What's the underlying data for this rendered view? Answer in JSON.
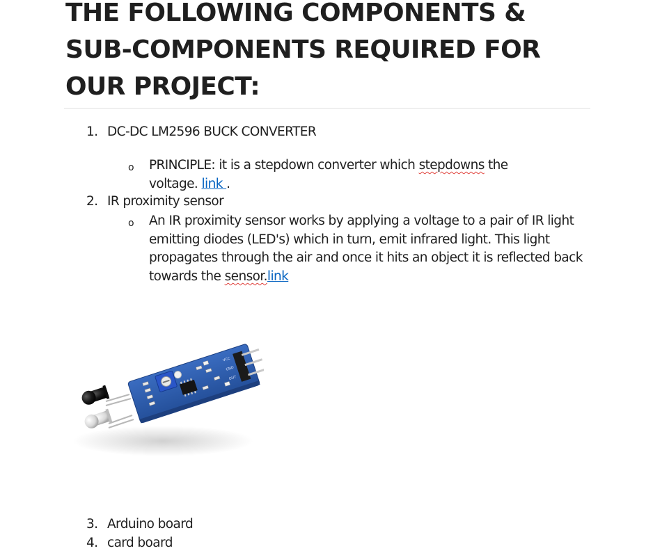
{
  "heading": {
    "line1": "THE FOLLOWING COMPONENTS &",
    "line2": "SUB-COMPONENTS REQUIRED FOR",
    "line3": "OUR PROJECT:"
  },
  "list": [
    {
      "number": "1.",
      "label": "DC-DC LM2596 BUCK CONVERTER",
      "sub": {
        "bullet": "o",
        "line1_before": "PRINCIPLE: it is a stepdown converter which ",
        "line1_misspelled": "stepdowns",
        "line1_after": " the",
        "line2_before": "voltage. ",
        "link_text": "link ",
        "line2_after": "."
      }
    },
    {
      "number": "2.",
      "label": "IR proximity sensor",
      "sub": {
        "bullet": "o",
        "line1": "An IR proximity sensor works by applying a voltage to a pair of IR light",
        "line2": "emitting diodes (LED's) which in turn, emit infrared light. This light",
        "line3": "propagates through the air and once it hits an object it is reflected back",
        "line4_before": "towards the ",
        "line4_misspelled": "sensor.",
        "link_text": "link"
      }
    },
    {
      "number": "3.",
      "label": "Arduino board"
    },
    {
      "number": "4.",
      "label": "card board"
    }
  ],
  "image": {
    "icon": "ir-proximity-sensor-module-photo",
    "colors": {
      "pcb": "#2f5fb0",
      "pcb_dark": "#1f4486",
      "trimpot": "#2a56c8",
      "emitter_led": "#1a1a1a",
      "receiver_led": "#d8d8d8",
      "pins": "#c9c9c9"
    }
  }
}
